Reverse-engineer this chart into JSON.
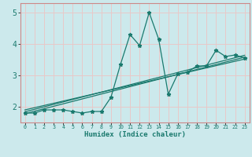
{
  "xlabel": "Humidex (Indice chaleur)",
  "bg_color": "#cce9ec",
  "grid_color": "#e8c8c8",
  "line_color": "#1a7a6e",
  "spine_color": "#cc8888",
  "xlim": [
    -0.5,
    23.5
  ],
  "ylim": [
    1.5,
    5.3
  ],
  "yticks": [
    2,
    3,
    4,
    5
  ],
  "xticks": [
    0,
    1,
    2,
    3,
    4,
    5,
    6,
    7,
    8,
    9,
    10,
    11,
    12,
    13,
    14,
    15,
    16,
    17,
    18,
    19,
    20,
    21,
    22,
    23
  ],
  "scatter_x": [
    0,
    1,
    2,
    3,
    4,
    5,
    6,
    7,
    8,
    9,
    10,
    11,
    12,
    13,
    14,
    15,
    16,
    17,
    18,
    19,
    20,
    21,
    22,
    23
  ],
  "scatter_y": [
    1.8,
    1.8,
    1.9,
    1.9,
    1.9,
    1.85,
    1.8,
    1.85,
    1.85,
    2.3,
    3.35,
    4.3,
    3.95,
    5.0,
    4.15,
    2.4,
    3.05,
    3.1,
    3.3,
    3.3,
    3.8,
    3.6,
    3.65,
    3.55
  ],
  "reg_lines": [
    [
      [
        0,
        23
      ],
      [
        1.78,
        3.58
      ]
    ],
    [
      [
        0,
        23
      ],
      [
        1.84,
        3.64
      ]
    ],
    [
      [
        0,
        23
      ],
      [
        1.9,
        3.52
      ]
    ]
  ]
}
